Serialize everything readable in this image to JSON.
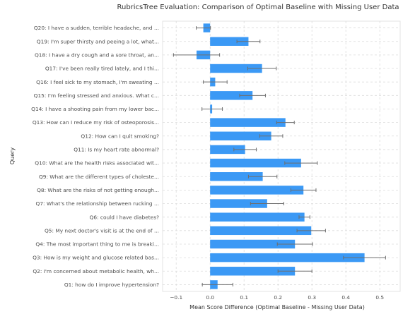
{
  "chart_data": {
    "type": "bar",
    "orientation": "horizontal",
    "title": "RubricsTree Evaluation: Comparison of Optimal Baseline with Missing User Data",
    "xlabel": "Mean Score Difference (Optimal Baseline - Missing User Data)",
    "ylabel": "Query",
    "xlim": [
      -0.14,
      0.56
    ],
    "x_ticks": [
      -0.1,
      0.0,
      0.1,
      0.2,
      0.3,
      0.4,
      0.5
    ],
    "x_tick_labels": [
      "−0.1",
      "0.0",
      "0.1",
      "0.2",
      "0.3",
      "0.4",
      "0.5"
    ],
    "grid": true,
    "categories": [
      "Q1: how do I improve hypertension?",
      "Q2: I'm concerned about metabolic health, wh...",
      "Q3: How is my weight and glucose related bas...",
      "Q4: The most important thing to me is breaki...",
      "Q5: My next doctor's visit is at the end of ...",
      "Q6: could I have diabetes?",
      "Q7: What's the relationship between rucking ...",
      "Q8: What are the risks of not getting enough...",
      "Q9: What are the different types of choleste...",
      "Q10: What are the health risks associated wit...",
      "Q11: Is my heart rate abnormal?",
      "Q12: How can I quit smoking?",
      "Q13: How can I reduce my risk of osteoporosis...",
      "Q14: I have a shooting pain from my lower bac...",
      "Q15: I'm feeling stressed and anxious. What c...",
      "Q16: I feel sick to my stomach, I'm sweating ...",
      "Q17: I've been really tired lately, and I thi...",
      "Q18: I have a dry cough and a sore throat, an...",
      "Q19: I'm super thirsty and peeing a lot, what...",
      "Q20: I have a sudden, terrible headache, and ..."
    ],
    "values": [
      0.022,
      0.25,
      0.455,
      0.25,
      0.298,
      0.278,
      0.168,
      0.275,
      0.155,
      0.268,
      0.103,
      0.18,
      0.222,
      0.006,
      0.125,
      0.015,
      0.153,
      -0.04,
      0.113,
      -0.02
    ],
    "errors": [
      0.045,
      0.05,
      0.062,
      0.052,
      0.042,
      0.016,
      0.049,
      0.037,
      0.042,
      0.048,
      0.033,
      0.034,
      0.026,
      0.03,
      0.038,
      0.035,
      0.042,
      0.068,
      0.034,
      0.021
    ],
    "colors": {
      "bar": "#3b99f5",
      "error_bar": "#6e6e6e",
      "grid": "#dcdcdc"
    }
  }
}
